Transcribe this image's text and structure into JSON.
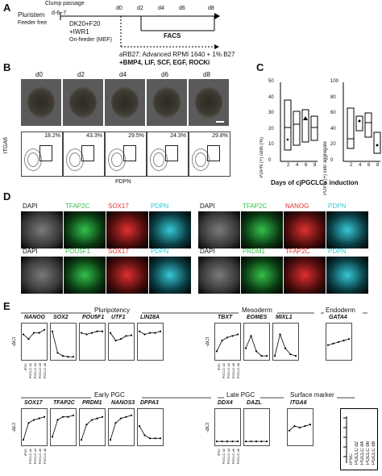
{
  "panel_labels": {
    "a": "A",
    "b": "B",
    "c": "C",
    "d": "D",
    "e": "E"
  },
  "panelA": {
    "plurstem": "Pluristem",
    "feeder_free": "Feeder free",
    "clump_passage": "Clump passage",
    "clump_days": "d-6~7",
    "dk20": "DK20+F20",
    "iwr1": "+IWR1",
    "on_feeder": "On-feeder (MEF)",
    "days": [
      "d0",
      "d2",
      "d4",
      "d6",
      "d8"
    ],
    "facs": "FACS",
    "arb27": "aRB27: Advanced RPMI 1640 + 1% B27",
    "supplements": "+BMP4, LIF, SCF, EGF, ROCKi"
  },
  "panelB": {
    "days": [
      "d0",
      "d2",
      "d4",
      "d6",
      "d8"
    ],
    "percents": [
      "18.2%",
      "43.3%",
      "29.5%",
      "24.3%",
      "29.8%"
    ],
    "yaxis": "ITGA6",
    "xaxis": "PDPN"
  },
  "panelC": {
    "ylabel1": "PDPN (+) cells (%)",
    "ylabel2": "PDPN (+) cell/ aggregate",
    "xlabel": "Days of cjPGCLCs induction",
    "xticks": [
      "2",
      "4",
      "6",
      "8"
    ],
    "yticks1": [
      "50",
      "40",
      "30",
      "20",
      "10",
      "0"
    ],
    "yticks2": [
      "100",
      "80",
      "60",
      "40",
      "20",
      "0"
    ]
  },
  "panelD": {
    "row1": [
      "DAPI",
      "TFAP2C",
      "SOX17",
      "PDPN",
      "DAPI",
      "TFAP2C",
      "NANOG",
      "PDPN"
    ],
    "row2": [
      "DAPI",
      "POU5F1",
      "SOX17",
      "PDPN",
      "DAPI",
      "PRDM1",
      "TFAP2C",
      "PDPN"
    ]
  },
  "panelE": {
    "groups_top": [
      "Pluripotency",
      "Mesoderm",
      "Endoderm"
    ],
    "groups_bottom": [
      "Early PGC",
      "Late PGC",
      "Surface marker"
    ],
    "ylabel": "-ΔCt",
    "xcats": [
      "iPSC",
      "PGCLC d2",
      "PGCLC d4",
      "PGCLC d6",
      "PGCLC d8"
    ],
    "legend": [
      "iPSC",
      "PGCLC d2",
      "PGCLC d4",
      "PGCLC d6",
      "PGCLC d8"
    ]
  },
  "chart_data": [
    {
      "type": "line",
      "title": "NANOG",
      "categories": [
        "iPSC",
        "PGCLC d2",
        "PGCLC d4",
        "PGCLC d6",
        "PGCLC d8"
      ],
      "values": [
        0.75,
        0.6,
        0.8,
        0.8,
        0.9
      ]
    },
    {
      "type": "line",
      "title": "SOX2",
      "categories": [
        "iPSC",
        "PGCLC d2",
        "PGCLC d4",
        "PGCLC d6",
        "PGCLC d8"
      ],
      "values": [
        0.85,
        0.15,
        0.05,
        0.02,
        0.02
      ]
    },
    {
      "type": "line",
      "title": "POU5F1",
      "categories": [
        "iPSC",
        "PGCLC d2",
        "PGCLC d4",
        "PGCLC d6",
        "PGCLC d8"
      ],
      "values": [
        0.8,
        0.75,
        0.8,
        0.85,
        0.85
      ]
    },
    {
      "type": "line",
      "title": "UTF1",
      "categories": [
        "iPSC",
        "PGCLC d2",
        "PGCLC d4",
        "PGCLC d6",
        "PGCLC d8"
      ],
      "values": [
        0.8,
        0.55,
        0.6,
        0.7,
        0.72
      ]
    },
    {
      "type": "line",
      "title": "LIN28A",
      "categories": [
        "iPSC",
        "PGCLC d2",
        "PGCLC d4",
        "PGCLC d6",
        "PGCLC d8"
      ],
      "values": [
        0.85,
        0.75,
        0.8,
        0.8,
        0.85
      ]
    },
    {
      "type": "line",
      "title": "TBXT",
      "categories": [
        "iPSC",
        "PGCLC d2",
        "PGCLC d4",
        "PGCLC d6",
        "PGCLC d8"
      ],
      "values": [
        0.2,
        0.55,
        0.65,
        0.7,
        0.75
      ]
    },
    {
      "type": "line",
      "title": "EOMES",
      "categories": [
        "iPSC",
        "PGCLC d2",
        "PGCLC d4",
        "PGCLC d6",
        "PGCLC d8"
      ],
      "values": [
        0.3,
        0.7,
        0.2,
        0.05,
        0.05
      ]
    },
    {
      "type": "line",
      "title": "MIXL1",
      "categories": [
        "iPSC",
        "PGCLC d2",
        "PGCLC d4",
        "PGCLC d6",
        "PGCLC d8"
      ],
      "values": [
        0.05,
        0.75,
        0.3,
        0.1,
        0.05
      ]
    },
    {
      "type": "line",
      "title": "GATA4",
      "categories": [
        "iPSC",
        "PGCLC d2",
        "PGCLC d4",
        "PGCLC d6",
        "PGCLC d8"
      ],
      "values": [
        0.4,
        0.45,
        0.5,
        0.55,
        0.6
      ]
    },
    {
      "type": "line",
      "title": "SOX17",
      "categories": [
        "iPSC",
        "PGCLC d2",
        "PGCLC d4",
        "PGCLC d6",
        "PGCLC d8"
      ],
      "values": [
        0.1,
        0.65,
        0.75,
        0.8,
        0.85
      ]
    },
    {
      "type": "line",
      "title": "TFAP2C",
      "categories": [
        "iPSC",
        "PGCLC d2",
        "PGCLC d4",
        "PGCLC d6",
        "PGCLC d8"
      ],
      "values": [
        0.2,
        0.75,
        0.85,
        0.85,
        0.9
      ]
    },
    {
      "type": "line",
      "title": "PRDM1",
      "categories": [
        "iPSC",
        "PGCLC d2",
        "PGCLC d4",
        "PGCLC d6",
        "PGCLC d8"
      ],
      "values": [
        0.1,
        0.6,
        0.75,
        0.8,
        0.85
      ]
    },
    {
      "type": "line",
      "title": "NANOS3",
      "categories": [
        "iPSC",
        "PGCLC d2",
        "PGCLC d4",
        "PGCLC d6",
        "PGCLC d8"
      ],
      "values": [
        0.1,
        0.65,
        0.8,
        0.85,
        0.9
      ]
    },
    {
      "type": "line",
      "title": "DPPA3",
      "categories": [
        "iPSC",
        "PGCLC d2",
        "PGCLC d4",
        "PGCLC d6",
        "PGCLC d8"
      ],
      "values": [
        0.55,
        0.25,
        0.15,
        0.15,
        0.15
      ]
    },
    {
      "type": "line",
      "title": "DDX4",
      "categories": [
        "iPSC",
        "PGCLC d2",
        "PGCLC d4",
        "PGCLC d6",
        "PGCLC d8"
      ],
      "values": [
        0.05,
        0.05,
        0.05,
        0.05,
        0.05
      ]
    },
    {
      "type": "line",
      "title": "DAZL",
      "categories": [
        "iPSC",
        "PGCLC d2",
        "PGCLC d4",
        "PGCLC d6",
        "PGCLC d8"
      ],
      "values": [
        0.05,
        0.05,
        0.05,
        0.05,
        0.05
      ]
    },
    {
      "type": "line",
      "title": "ITGA6",
      "categories": [
        "iPSC",
        "PGCLC d2",
        "PGCLC d4",
        "PGCLC d6",
        "PGCLC d8"
      ],
      "values": [
        0.4,
        0.55,
        0.5,
        0.55,
        0.6
      ]
    }
  ]
}
